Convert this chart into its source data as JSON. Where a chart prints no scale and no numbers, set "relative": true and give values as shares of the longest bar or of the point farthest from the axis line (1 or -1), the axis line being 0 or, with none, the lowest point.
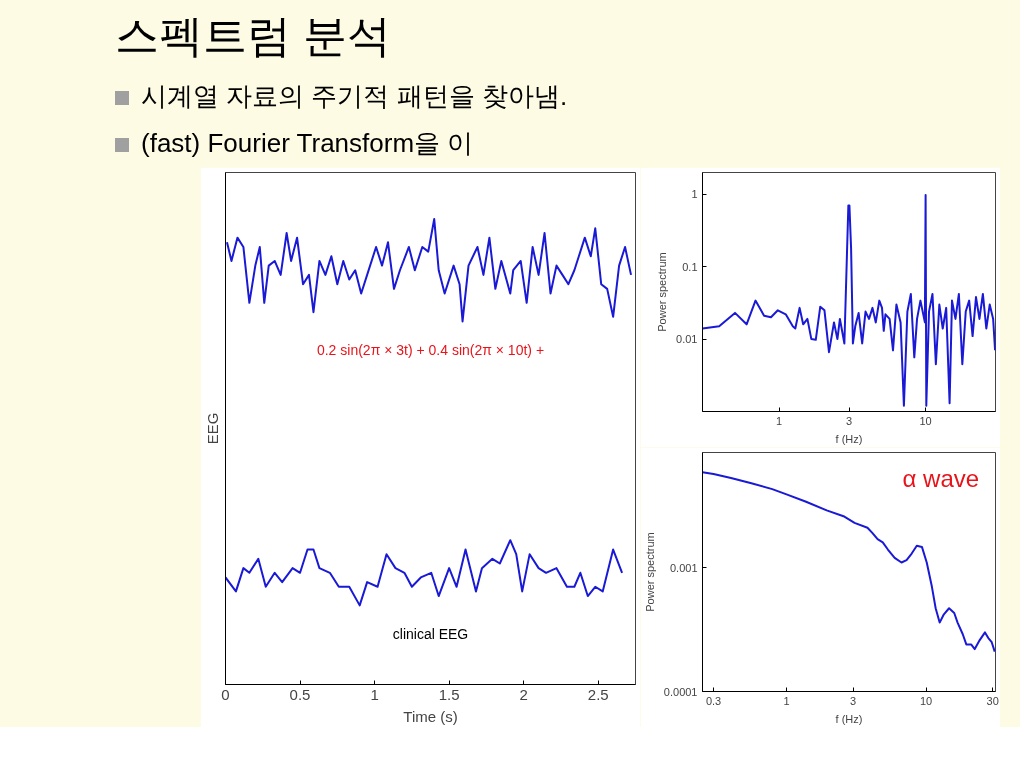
{
  "chart_data": [
    {
      "type": "other",
      "title": "스펙트럼 분석",
      "annotations": [
        "시계열 자료의 주기적 패턴을 찾아냄.",
        "(fast) Fourier Transform을 이"
      ]
    },
    {
      "type": "line",
      "relative": true,
      "xlabel": "Time (s)",
      "ylabel": "EEG",
      "xlim": [
        0,
        2.75
      ],
      "xticks": [
        0,
        0.5,
        1,
        1.5,
        2,
        2.5
      ],
      "tick_labels": "x",
      "series": [
        {
          "name": "0.2 sin(2π × 3t) + 0.4 sin(2π × 10t) +",
          "color": "#1a1ad6",
          "x": [
            0.01,
            0.04,
            0.08,
            0.12,
            0.16,
            0.2,
            0.23,
            0.26,
            0.29,
            0.33,
            0.37,
            0.41,
            0.44,
            0.48,
            0.52,
            0.56,
            0.59,
            0.63,
            0.67,
            0.71,
            0.75,
            0.79,
            0.83,
            0.87,
            0.91,
            0.95,
            1.01,
            1.05,
            1.09,
            1.13,
            1.17,
            1.23,
            1.27,
            1.32,
            1.36,
            1.4,
            1.43,
            1.47,
            1.53,
            1.57,
            1.59,
            1.63,
            1.69,
            1.73,
            1.77,
            1.81,
            1.85,
            1.91,
            1.93,
            1.98,
            2.02,
            2.06,
            2.1,
            2.14,
            2.18,
            2.22,
            2.26,
            2.3,
            2.34,
            2.37,
            2.41,
            2.45,
            2.48,
            2.52,
            2.56,
            2.6,
            2.64,
            2.68,
            2.72
          ],
          "values": [
            0.95,
            0.91,
            0.96,
            0.94,
            0.82,
            0.9,
            0.94,
            0.82,
            0.9,
            0.91,
            0.88,
            0.97,
            0.91,
            0.96,
            0.86,
            0.88,
            0.8,
            0.91,
            0.88,
            0.92,
            0.86,
            0.91,
            0.87,
            0.89,
            0.84,
            0.88,
            0.94,
            0.9,
            0.95,
            0.85,
            0.89,
            0.94,
            0.89,
            0.94,
            0.93,
            1.0,
            0.89,
            0.84,
            0.9,
            0.86,
            0.78,
            0.9,
            0.94,
            0.88,
            0.96,
            0.85,
            0.91,
            0.84,
            0.89,
            0.91,
            0.82,
            0.94,
            0.88,
            0.97,
            0.84,
            0.9,
            0.88,
            0.86,
            0.89,
            0.92,
            0.96,
            0.92,
            0.98,
            0.86,
            0.85,
            0.79,
            0.9,
            0.94,
            0.88
          ]
        },
        {
          "name": "clinical EEG",
          "color": "#1a1ad6",
          "x": [
            0,
            0.07,
            0.12,
            0.16,
            0.22,
            0.27,
            0.33,
            0.38,
            0.45,
            0.5,
            0.55,
            0.59,
            0.63,
            0.7,
            0.76,
            0.83,
            0.9,
            0.95,
            1.02,
            1.08,
            1.14,
            1.2,
            1.25,
            1.31,
            1.38,
            1.43,
            1.5,
            1.55,
            1.61,
            1.68,
            1.72,
            1.79,
            1.84,
            1.91,
            1.95,
            1.99,
            2.04,
            2.1,
            2.15,
            2.22,
            2.29,
            2.34,
            2.38,
            2.43,
            2.48,
            2.53,
            2.6,
            2.66
          ],
          "values": [
            0.23,
            0.2,
            0.25,
            0.24,
            0.27,
            0.21,
            0.24,
            0.22,
            0.25,
            0.24,
            0.29,
            0.29,
            0.25,
            0.24,
            0.21,
            0.21,
            0.17,
            0.22,
            0.21,
            0.28,
            0.25,
            0.24,
            0.21,
            0.23,
            0.24,
            0.19,
            0.25,
            0.21,
            0.29,
            0.2,
            0.25,
            0.27,
            0.26,
            0.31,
            0.28,
            0.2,
            0.28,
            0.25,
            0.24,
            0.25,
            0.21,
            0.21,
            0.24,
            0.19,
            0.21,
            0.2,
            0.29,
            0.24
          ]
        }
      ]
    },
    {
      "type": "line",
      "log": "xy",
      "xlabel": "f (Hz)",
      "ylabel": "Power spectrum",
      "xlim": [
        0.3,
        30
      ],
      "ylim": [
        0.001,
        2
      ],
      "xticks": [
        1,
        3,
        10
      ],
      "yticks": [
        0.01,
        0.1,
        1
      ],
      "series": [
        {
          "color": "#1a1ad6",
          "x": [
            0.3,
            0.39,
            0.5,
            0.6,
            0.69,
            0.79,
            0.88,
            0.98,
            1.11,
            1.24,
            1.29,
            1.38,
            1.46,
            1.56,
            1.66,
            1.78,
            1.91,
            2.04,
            2.19,
            2.37,
            2.5,
            2.6,
            2.79,
            2.97,
            3.02,
            3.1,
            3.19,
            3.31,
            3.49,
            3.69,
            3.89,
            4.11,
            4.34,
            4.57,
            4.83,
            5.04,
            5.18,
            5.32,
            5.68,
            5.99,
            6.32,
            6.75,
            7.11,
            7.51,
            7.93,
            8.37,
            8.74,
            9.22,
            9.89,
            10.0,
            10.11,
            10.55,
            11.14,
            11.75,
            12.41,
            13.09,
            13.82,
            14.58,
            15.14,
            15.99,
            16.87,
            17.81,
            18.79,
            19.83,
            20.93,
            22.08,
            23.31,
            24.6,
            25.97,
            27.39,
            28.91,
            29.8
          ],
          "values": [
            0.014,
            0.015,
            0.023,
            0.016,
            0.034,
            0.021,
            0.02,
            0.025,
            0.022,
            0.015,
            0.014,
            0.027,
            0.016,
            0.019,
            0.01,
            0.0098,
            0.028,
            0.025,
            0.0066,
            0.017,
            0.01,
            0.019,
            0.0087,
            0.7,
            0.7,
            0.18,
            0.0087,
            0.015,
            0.023,
            0.0087,
            0.024,
            0.019,
            0.027,
            0.017,
            0.034,
            0.027,
            0.013,
            0.022,
            0.019,
            0.007,
            0.03,
            0.017,
            0.0012,
            0.024,
            0.042,
            0.0056,
            0.019,
            0.034,
            0.017,
            0.98,
            0.0012,
            0.024,
            0.042,
            0.0045,
            0.03,
            0.014,
            0.027,
            0.0013,
            0.034,
            0.019,
            0.042,
            0.0045,
            0.024,
            0.034,
            0.011,
            0.038,
            0.019,
            0.042,
            0.014,
            0.03,
            0.019,
            0.007
          ]
        }
      ]
    },
    {
      "type": "line",
      "log": "xy",
      "xlabel": "f (Hz)",
      "ylabel": "Power spectrum",
      "xlim": [
        0.25,
        31.4
      ],
      "ylim": [
        0.0001,
        0.0085
      ],
      "xticks": [
        0.3,
        1,
        3,
        10,
        30
      ],
      "yticks": [
        0.0001,
        0.001
      ],
      "annotations": [
        "α wave"
      ],
      "series": [
        {
          "color": "#1a1ad6",
          "x": [
            0.25,
            0.3,
            0.4,
            0.56,
            0.79,
            1.0,
            1.38,
            1.94,
            2.56,
            3.07,
            3.8,
            4.13,
            4.49,
            4.89,
            5.32,
            5.95,
            6.66,
            7.24,
            7.88,
            8.57,
            9.33,
            10.1,
            11.0,
            11.7,
            12.5,
            13.4,
            14.6,
            15.9,
            16.8,
            18.3,
            19.4,
            21.0,
            22.3,
            24.2,
            26.4,
            27.9,
            29.5,
            31.0
          ],
          "values": [
            0.0059,
            0.0057,
            0.0053,
            0.0048,
            0.0043,
            0.0039,
            0.0034,
            0.0029,
            0.0026,
            0.0023,
            0.0021,
            0.0019,
            0.0017,
            0.0016,
            0.0014,
            0.0012,
            0.0011,
            0.00115,
            0.0013,
            0.0015,
            0.00147,
            0.0011,
            0.0007,
            0.00047,
            0.00036,
            0.00042,
            0.00047,
            0.00043,
            0.00036,
            0.00029,
            0.00024,
            0.00024,
            0.00022,
            0.00026,
            0.0003,
            0.00027,
            0.00025,
            0.00021
          ]
        }
      ]
    }
  ]
}
